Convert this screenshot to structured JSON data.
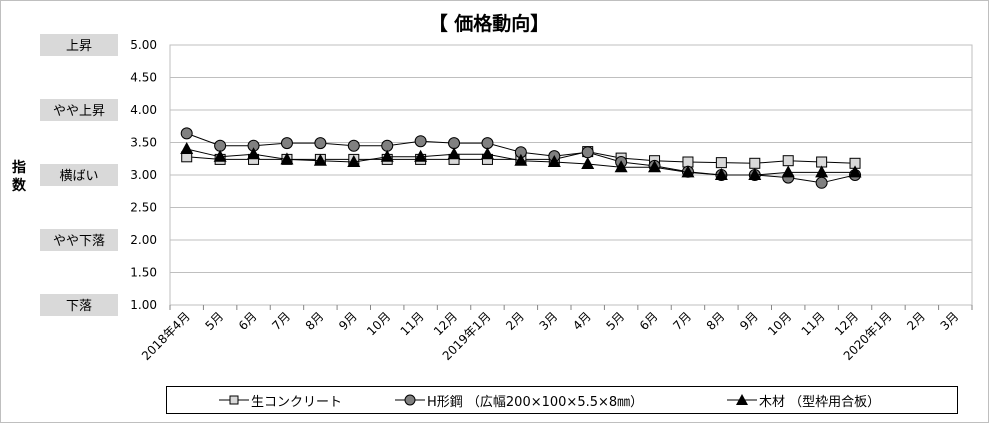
{
  "chart_data": {
    "type": "line",
    "title": "【 価格動向】",
    "ylabel": "指数",
    "ylim": [
      1.0,
      5.0
    ],
    "yticks": [
      "1.00",
      "1.50",
      "2.00",
      "2.50",
      "3.00",
      "3.50",
      "4.00",
      "4.50",
      "5.00"
    ],
    "level_labels": [
      {
        "value": 5.0,
        "label": "上昇"
      },
      {
        "value": 4.0,
        "label": "やや上昇"
      },
      {
        "value": 3.0,
        "label": "横ばい"
      },
      {
        "value": 2.0,
        "label": "やや下落"
      },
      {
        "value": 1.0,
        "label": "下落"
      }
    ],
    "categories": [
      "2018年4月",
      "5月",
      "6月",
      "7月",
      "8月",
      "9月",
      "10月",
      "11月",
      "12月",
      "2019年1月",
      "2月",
      "3月",
      "4月",
      "5月",
      "6月",
      "7月",
      "8月",
      "9月",
      "10月",
      "11月",
      "12月",
      "2020年1月",
      "2月",
      "3月"
    ],
    "grid": true,
    "legend_position": "bottom",
    "series": [
      {
        "name": "生コンクリート",
        "marker": "square",
        "color": "#d9d9d9",
        "values": [
          3.28,
          3.24,
          3.24,
          3.24,
          3.24,
          3.24,
          3.24,
          3.24,
          3.24,
          3.24,
          3.24,
          3.24,
          3.36,
          3.26,
          3.22,
          3.2,
          3.19,
          3.18,
          3.22,
          3.2,
          3.18,
          null,
          null,
          null
        ]
      },
      {
        "name": "H形鋼 （広幅200×100×5.5×8㎜）",
        "marker": "circle",
        "color": "#808080",
        "values": [
          3.64,
          3.45,
          3.45,
          3.49,
          3.49,
          3.45,
          3.45,
          3.52,
          3.49,
          3.49,
          3.35,
          3.29,
          3.35,
          3.2,
          3.14,
          3.05,
          3.0,
          3.0,
          2.96,
          2.88,
          3.0,
          null,
          null,
          null
        ]
      },
      {
        "name": "木材 （型枠用合板）",
        "marker": "triangle",
        "color": "#000000",
        "values": [
          3.4,
          3.28,
          3.32,
          3.24,
          3.22,
          3.2,
          3.28,
          3.28,
          3.32,
          3.32,
          3.22,
          3.2,
          3.17,
          3.12,
          3.12,
          3.04,
          3.0,
          3.0,
          3.04,
          3.04,
          3.04,
          null,
          null,
          null
        ]
      }
    ]
  }
}
